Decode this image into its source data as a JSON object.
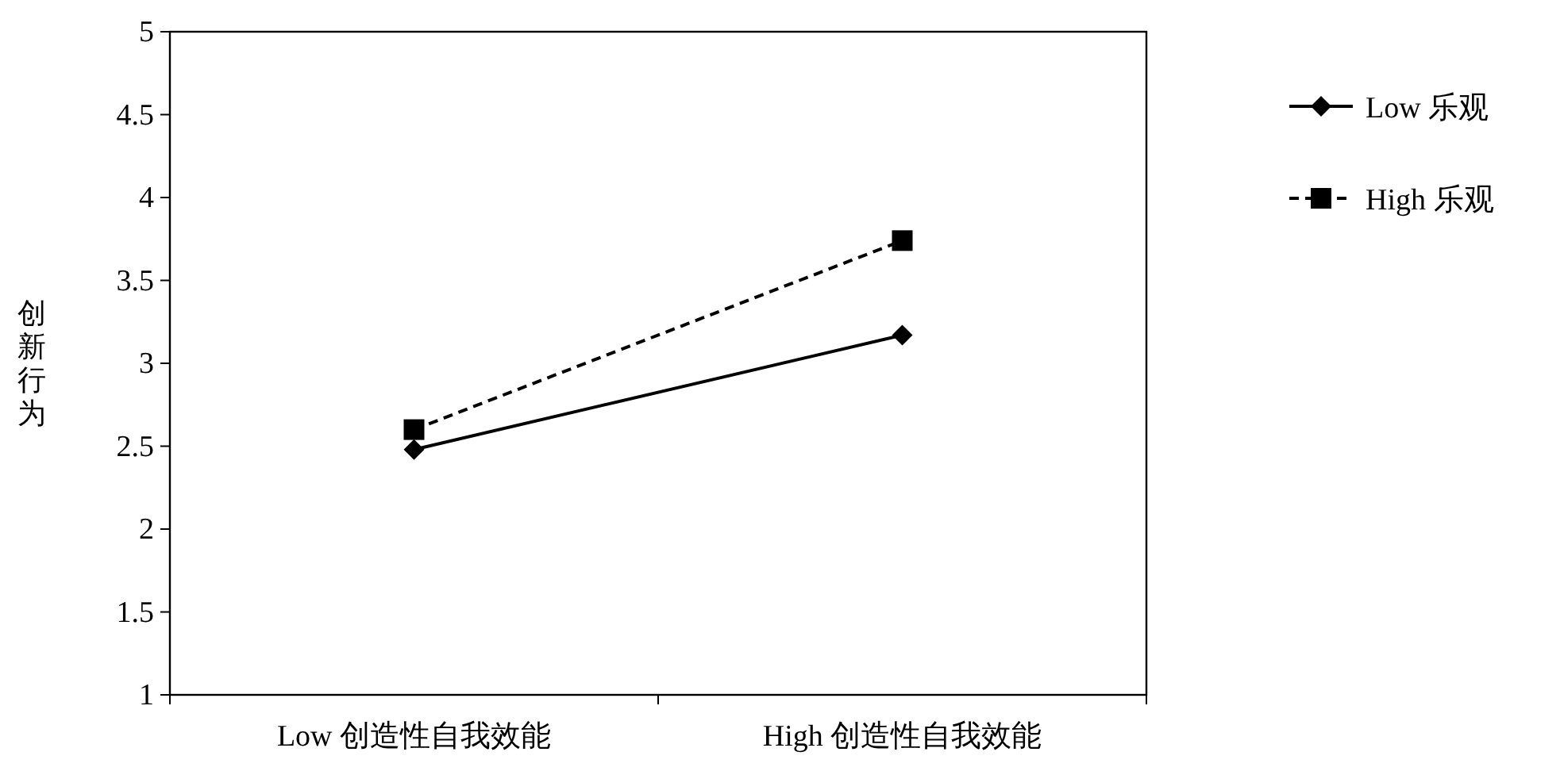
{
  "chart_data": {
    "type": "line",
    "ylabel": "创新行为",
    "categories": [
      "Low 创造性自我效能",
      "High 创造性自我效能"
    ],
    "series": [
      {
        "name": "Low 乐观",
        "color": "#000000",
        "values": [
          2.48,
          3.17
        ],
        "marker": "diamond",
        "line_style": "solid"
      },
      {
        "name": "High 乐观",
        "color": "#000000",
        "values": [
          2.6,
          3.74
        ],
        "marker": "square",
        "line_style": "dashed"
      }
    ],
    "ylim": [
      1,
      5
    ],
    "yticks": [
      1,
      1.5,
      2,
      2.5,
      3,
      3.5,
      4,
      4.5,
      5
    ],
    "grid": false,
    "legend": "right"
  }
}
